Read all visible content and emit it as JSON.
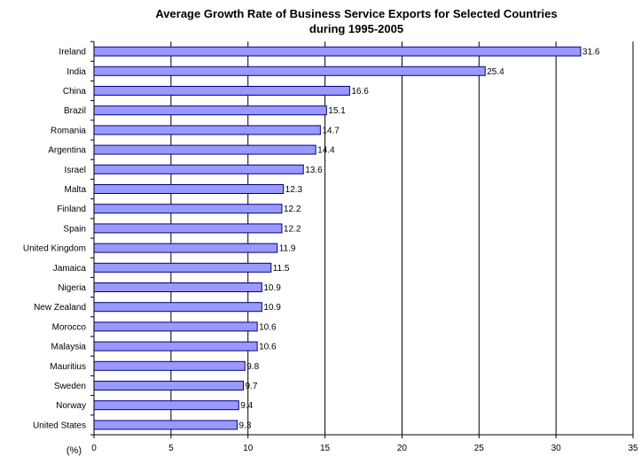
{
  "chart_data": {
    "type": "bar",
    "orientation": "horizontal",
    "title_line1": "Average Growth Rate of Business Service Exports for Selected Countries",
    "title_line2": "during 1995-2005",
    "xunit_label": "(%)",
    "categories": [
      "Ireland",
      "India",
      "China",
      "Brazil",
      "Romania",
      "Argentina",
      "Israel",
      "Malta",
      "Finland",
      "Spain",
      "United Kingdom",
      "Jamaica",
      "Nigeria",
      "New Zealand",
      "Morocco",
      "Malaysia",
      "Mauritius",
      "Sweden",
      "Norway",
      "United States"
    ],
    "values": [
      31.6,
      25.4,
      16.6,
      15.1,
      14.7,
      14.4,
      13.6,
      12.3,
      12.2,
      12.2,
      11.9,
      11.5,
      10.9,
      10.9,
      10.6,
      10.6,
      9.8,
      9.7,
      9.4,
      9.3
    ],
    "xlim": [
      0,
      35
    ],
    "xticks": [
      0,
      5,
      10,
      15,
      20,
      25,
      30,
      35
    ],
    "grid": "vertical",
    "bar_color": "#9999ff",
    "bar_edge_color": "#000080",
    "legend": "none"
  }
}
